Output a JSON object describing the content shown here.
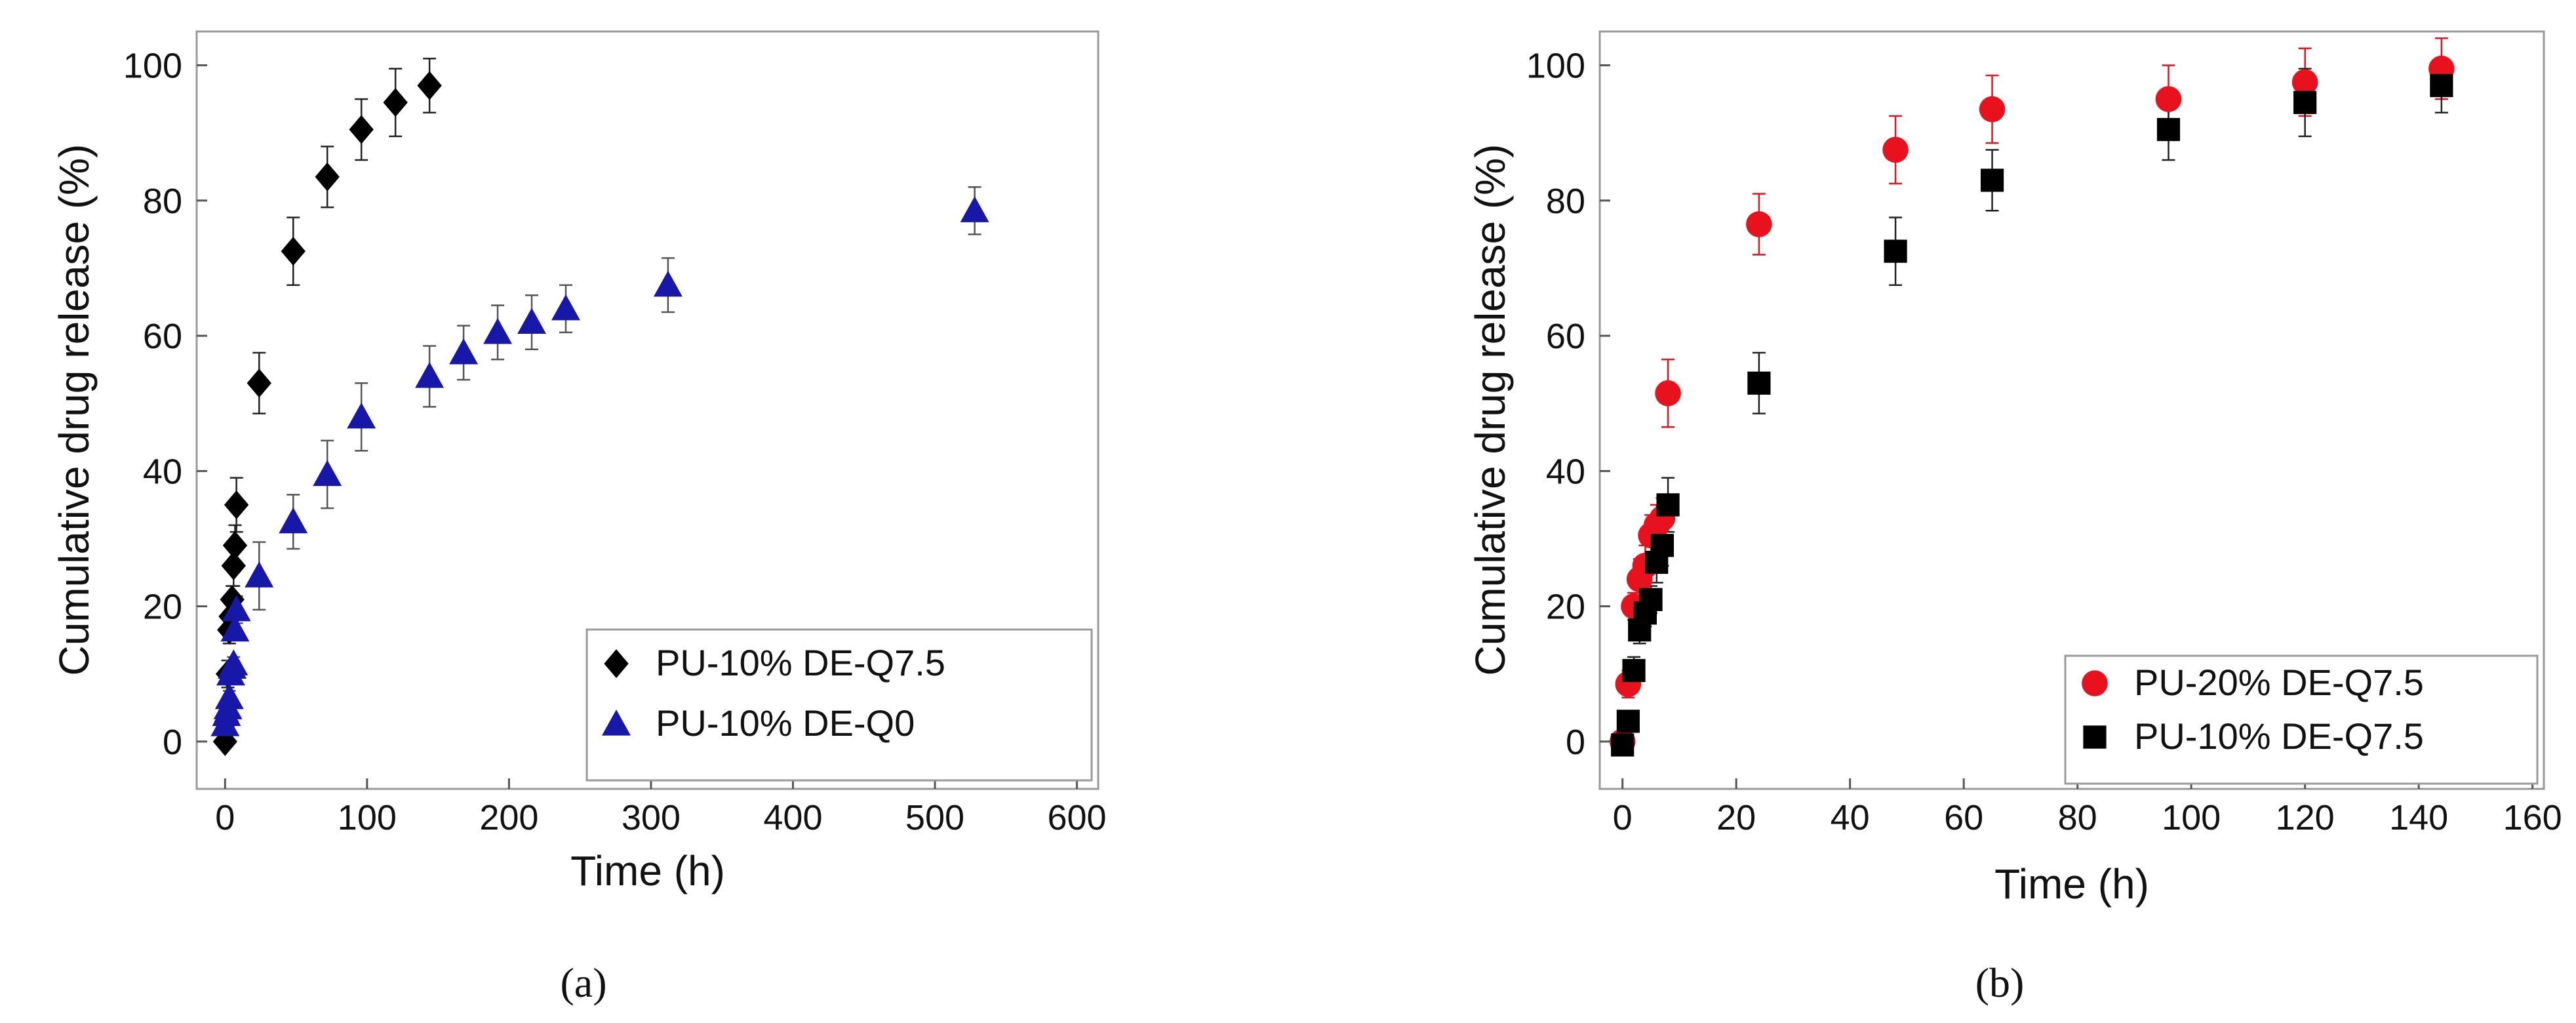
{
  "panels": [
    {
      "label": "(a)",
      "chart_data": {
        "type": "scatter",
        "xlabel": "Time (h)",
        "ylabel": "Cumulative drug release (%)",
        "xlim": [
          -20,
          615
        ],
        "ylim": [
          -7,
          105
        ],
        "xticks": [
          0,
          100,
          200,
          300,
          400,
          500,
          600
        ],
        "yticks": [
          0,
          20,
          40,
          60,
          80,
          100
        ],
        "grid": false,
        "legend_position": "bottom-right",
        "series": [
          {
            "name": "PU-10% DE-Q7.5",
            "marker": "diamond",
            "color": "#000000",
            "x": [
              0,
              1,
              2,
              3,
              4,
              5,
              6,
              7,
              8,
              24,
              48,
              72,
              96,
              120,
              144
            ],
            "y": [
              0,
              3,
              10,
              16.5,
              18.5,
              21,
              26,
              29,
              35,
              53,
              72.5,
              83.5,
              90.5,
              94.5,
              97
            ],
            "err": [
              0,
              1.5,
              2,
              2,
              2,
              2,
              3,
              3,
              4,
              4.5,
              5,
              4.5,
              4.5,
              5,
              4
            ]
          },
          {
            "name": "PU-10% DE-Q0",
            "marker": "triangle",
            "color": "#1818a8",
            "x": [
              0,
              1,
              2,
              3,
              4,
              5,
              6,
              7,
              8,
              24,
              48,
              72,
              96,
              144,
              168,
              192,
              216,
              240,
              312,
              528
            ],
            "y": [
              2.5,
              4,
              5,
              6.5,
              10,
              11,
              11.5,
              16.5,
              19.5,
              24.5,
              32.5,
              39.5,
              48,
              54,
              57.5,
              60.5,
              62,
              64,
              67.5,
              78.5
            ],
            "err": [
              1,
              1,
              1,
              1,
              1,
              1,
              1,
              1.5,
              2,
              5,
              4,
              5,
              5,
              4.5,
              4,
              4,
              4,
              3.5,
              4,
              3.5
            ]
          }
        ]
      }
    },
    {
      "label": "(b)",
      "chart_data": {
        "type": "scatter",
        "xlabel": "Time (h)",
        "ylabel": "Cumulative drug release (%)",
        "xlim": [
          -4,
          162
        ],
        "ylim": [
          -7,
          105
        ],
        "xticks": [
          0,
          20,
          40,
          60,
          80,
          100,
          120,
          140,
          160
        ],
        "yticks": [
          0,
          20,
          40,
          60,
          80,
          100
        ],
        "grid": false,
        "legend_position": "bottom-right",
        "series": [
          {
            "name": "PU-20% DE-Q7.5",
            "marker": "circle",
            "color": "#e8121e",
            "x": [
              0,
              1,
              2,
              3,
              4,
              5,
              6,
              7,
              8,
              24,
              48,
              65,
              96,
              120,
              144
            ],
            "y": [
              0,
              8.5,
              20,
              24,
              26,
              30.5,
              32,
              33,
              51.5,
              76.5,
              87.5,
              93.5,
              95,
              97.5,
              99.5
            ],
            "err": [
              0,
              2,
              2,
              3,
              3,
              3,
              3,
              3,
              5,
              4.5,
              5,
              5,
              5,
              5,
              4.5
            ]
          },
          {
            "name": "PU-10% DE-Q7.5",
            "marker": "square",
            "color": "#000000",
            "x": [
              0,
              1,
              2,
              3,
              4,
              5,
              6,
              7,
              8,
              24,
              48,
              65,
              96,
              120,
              144
            ],
            "y": [
              -0.5,
              3,
              10.5,
              16.5,
              19,
              21,
              26.5,
              29,
              35,
              53,
              72.5,
              83,
              90.5,
              94.5,
              97
            ],
            "err": [
              0,
              1,
              2,
              2,
              2,
              2,
              3,
              3,
              4,
              4.5,
              5,
              4.5,
              4.5,
              5,
              4
            ]
          }
        ]
      }
    }
  ]
}
